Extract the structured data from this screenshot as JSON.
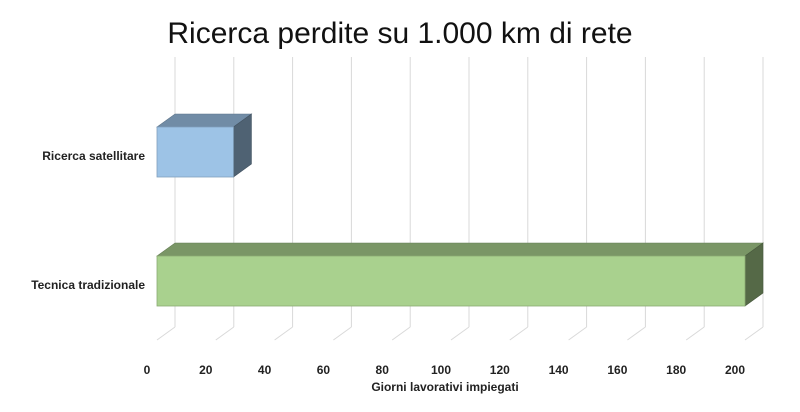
{
  "chart_data": {
    "type": "bar",
    "orientation": "horizontal",
    "style": "3d",
    "title": "Ricerca perdite su 1.000 km di rete",
    "xlabel": "Giorni lavorativi impiegati",
    "ylabel": "",
    "xlim": [
      0,
      200
    ],
    "ticks": [
      0,
      20,
      40,
      60,
      80,
      100,
      120,
      140,
      160,
      180,
      200
    ],
    "grid": true,
    "legend": "none",
    "categories": [
      "Ricerca satellitare",
      "Tecnica tradizionale"
    ],
    "values": [
      26,
      200
    ],
    "colors": [
      "#9dc3e6",
      "#a9d18e"
    ]
  }
}
